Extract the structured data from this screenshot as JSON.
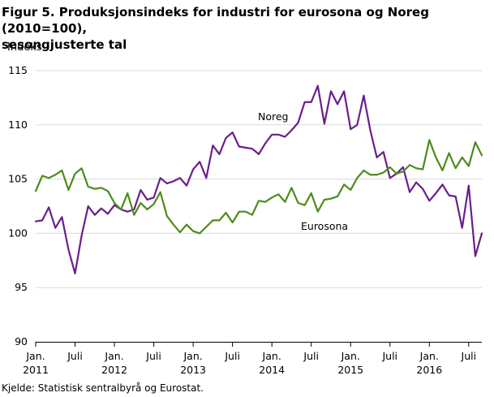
{
  "title_line1": "Figur 5. Produksjonsindeks for industri for eurosona og Noreg (2010=100),",
  "title_line2": "sesongjusterte tal",
  "ylabel": "Indeks",
  "source": "Kjelde: Statistisk sentralbyrå og Eurostat.",
  "colors": {
    "eurosona": "#4c8c1a",
    "noreg": "#6b1e8c",
    "grid": "#d9d9d9",
    "axis": "#000000"
  },
  "chart_data": {
    "type": "line",
    "ylim": [
      90,
      115
    ],
    "yticks": [
      90,
      95,
      100,
      105,
      110,
      115
    ],
    "x_start": "2011-01",
    "x_end": "2016-09",
    "xticks": [
      {
        "label": "Jan.",
        "sub": "2011",
        "month": 0
      },
      {
        "label": "Juli",
        "sub": "",
        "month": 6
      },
      {
        "label": "Jan.",
        "sub": "2012",
        "month": 12
      },
      {
        "label": "Juli",
        "sub": "",
        "month": 18
      },
      {
        "label": "Jan.",
        "sub": "2013",
        "month": 24
      },
      {
        "label": "Juli",
        "sub": "",
        "month": 30
      },
      {
        "label": "Jan.",
        "sub": "2014",
        "month": 36
      },
      {
        "label": "Juli",
        "sub": "",
        "month": 42
      },
      {
        "label": "Jan.",
        "sub": "2015",
        "month": 48
      },
      {
        "label": "Juli",
        "sub": "",
        "month": 54
      },
      {
        "label": "Jan.",
        "sub": "2016",
        "month": 60
      },
      {
        "label": "Juli",
        "sub": "",
        "month": 66
      }
    ],
    "grid": true,
    "series": [
      {
        "name": "Noreg",
        "color": "#6b1e8c",
        "values": [
          101.1,
          101.2,
          102.4,
          100.5,
          101.5,
          98.5,
          96.3,
          99.8,
          102.5,
          101.7,
          102.3,
          101.8,
          102.6,
          102.2,
          102.0,
          102.2,
          104.0,
          103.1,
          103.3,
          105.1,
          104.6,
          104.8,
          105.1,
          104.4,
          105.9,
          106.6,
          105.1,
          108.1,
          107.3,
          108.8,
          109.3,
          108.0,
          107.9,
          107.8,
          107.3,
          108.3,
          109.1,
          109.1,
          108.9,
          109.5,
          110.2,
          112.1,
          112.1,
          113.6,
          110.1,
          113.1,
          111.9,
          113.1,
          109.6,
          110.0,
          112.7,
          109.5,
          107.0,
          107.5,
          105.1,
          105.5,
          106.1,
          103.8,
          104.7,
          104.1,
          103.0,
          103.7,
          104.5,
          103.5,
          103.4,
          100.5,
          104.4,
          97.9,
          100.0
        ]
      },
      {
        "name": "Eurosona",
        "color": "#4c8c1a",
        "values": [
          103.9,
          105.3,
          105.1,
          105.4,
          105.8,
          104.0,
          105.5,
          106.0,
          104.3,
          104.1,
          104.2,
          103.9,
          102.8,
          102.2,
          103.7,
          101.7,
          102.8,
          102.2,
          102.7,
          103.8,
          101.6,
          100.8,
          100.1,
          100.8,
          100.2,
          100.0,
          100.6,
          101.2,
          101.2,
          101.9,
          101.0,
          102.0,
          102.0,
          101.7,
          103.0,
          102.9,
          103.3,
          103.6,
          102.9,
          104.2,
          102.8,
          102.6,
          103.7,
          102.0,
          103.1,
          103.2,
          103.4,
          104.5,
          104.0,
          105.1,
          105.8,
          105.4,
          105.4,
          105.6,
          106.1,
          105.5,
          105.7,
          106.3,
          106.0,
          105.9,
          108.6,
          107.0,
          105.8,
          107.4,
          106.0,
          107.0,
          106.2,
          108.4,
          107.2
        ]
      }
    ],
    "annotations": [
      {
        "text": "Noreg",
        "series": "Noreg"
      },
      {
        "text": "Eurosona",
        "series": "Eurosona"
      }
    ]
  }
}
